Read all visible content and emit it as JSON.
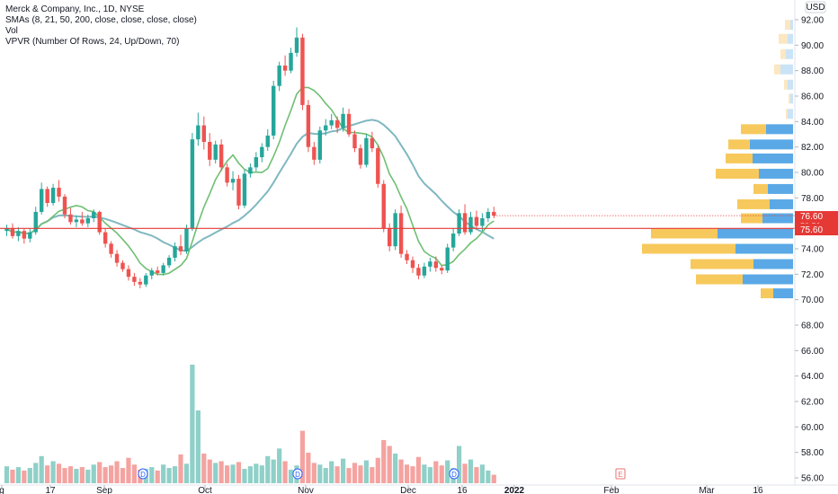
{
  "legend": {
    "line1": "Merck & Company, Inc., 1D, NYSE",
    "line2": "SMAs (8, 21, 50, 200, close, close, close, close)",
    "line3": "Vol",
    "line4": "VPVR (Number Of Rows, 24, Up/Down, 70)"
  },
  "currency": "USD",
  "price_labels": {
    "last": "76.60",
    "countdown": "58:53",
    "level": "75.60"
  },
  "event_markers": [
    "D",
    "D",
    "D",
    "D",
    "E"
  ],
  "colors": {
    "up": "#26a69a",
    "down": "#ef5350",
    "sma_fast": "#6fbf73",
    "sma_slow": "#7fb8c0",
    "level_line": "#e53935",
    "vol_up": "#8fd0c8",
    "vol_down": "#f4a3a0",
    "vp_up_value_area": "#5aa9e6",
    "vp_down_value_area": "#f7c95c",
    "vp_up_outside": "#cbe3f6",
    "vp_down_outside": "#fbe7c1"
  },
  "chart_data": {
    "type": "candlestick",
    "ticker": "Merck & Company, Inc.",
    "interval": "1D",
    "exchange": "NYSE",
    "y_axis": {
      "ticks": [
        "92.00",
        "90.00",
        "88.00",
        "86.00",
        "84.00",
        "82.00",
        "80.00",
        "78.00",
        "76.00",
        "74.00",
        "72.00",
        "70.00",
        "68.00",
        "66.00",
        "64.00",
        "62.00",
        "60.00",
        "58.00",
        "56.00"
      ],
      "range": [
        55.5,
        93
      ]
    },
    "x_axis": {
      "ticks": [
        {
          "label": "g",
          "bold": false
        },
        {
          "label": "17",
          "bold": false
        },
        {
          "label": "Sep",
          "bold": false
        },
        {
          "label": "Oct",
          "bold": false
        },
        {
          "label": "Nov",
          "bold": false
        },
        {
          "label": "Dec",
          "bold": false
        },
        {
          "label": "16",
          "bold": false
        },
        {
          "label": "2022",
          "bold": true
        },
        {
          "label": "Feb",
          "bold": false
        },
        {
          "label": "Mar",
          "bold": false
        },
        {
          "label": "16",
          "bold": false
        }
      ]
    },
    "last_price": 76.6,
    "horizontal_level": 75.6,
    "candles": [
      [
        75.4,
        75.9,
        75.0,
        75.6
      ],
      [
        75.6,
        76.0,
        74.8,
        75.0
      ],
      [
        75.0,
        75.7,
        74.6,
        75.4
      ],
      [
        75.4,
        75.6,
        74.4,
        74.8
      ],
      [
        74.8,
        75.6,
        74.5,
        75.3
      ],
      [
        75.3,
        77.3,
        75.1,
        76.9
      ],
      [
        76.9,
        79.2,
        76.7,
        78.7
      ],
      [
        78.7,
        78.9,
        77.3,
        77.6
      ],
      [
        77.6,
        79.1,
        77.4,
        78.8
      ],
      [
        78.8,
        79.4,
        77.7,
        78.1
      ],
      [
        78.1,
        78.3,
        76.4,
        76.7
      ],
      [
        76.7,
        77.2,
        75.9,
        76.1
      ],
      [
        76.1,
        76.6,
        75.7,
        76.3
      ],
      [
        76.3,
        76.9,
        75.8,
        76.0
      ],
      [
        76.0,
        76.7,
        75.7,
        76.4
      ],
      [
        76.4,
        77.1,
        76.1,
        76.9
      ],
      [
        76.9,
        77.0,
        75.1,
        75.3
      ],
      [
        75.3,
        75.6,
        74.1,
        74.4
      ],
      [
        74.4,
        74.6,
        73.3,
        73.6
      ],
      [
        73.6,
        73.9,
        72.6,
        72.9
      ],
      [
        72.9,
        73.1,
        72.2,
        72.4
      ],
      [
        72.4,
        72.7,
        71.5,
        71.8
      ],
      [
        71.8,
        72.1,
        71.1,
        71.4
      ],
      [
        71.4,
        71.7,
        70.9,
        71.2
      ],
      [
        71.2,
        72.1,
        71.0,
        71.9
      ],
      [
        71.9,
        72.5,
        71.6,
        72.3
      ],
      [
        72.3,
        72.6,
        71.9,
        72.1
      ],
      [
        72.1,
        72.9,
        71.9,
        72.7
      ],
      [
        72.7,
        73.5,
        72.5,
        73.3
      ],
      [
        73.3,
        74.5,
        73.0,
        74.2
      ],
      [
        74.2,
        75.1,
        73.5,
        73.8
      ],
      [
        73.8,
        75.9,
        73.6,
        75.6
      ],
      [
        75.6,
        83.1,
        75.4,
        82.6
      ],
      [
        82.6,
        84.7,
        82.1,
        83.7
      ],
      [
        83.7,
        84.4,
        81.8,
        82.4
      ],
      [
        82.4,
        83.1,
        80.5,
        81.0
      ],
      [
        81.0,
        82.5,
        80.7,
        82.2
      ],
      [
        82.2,
        82.6,
        80.1,
        80.4
      ],
      [
        80.4,
        80.7,
        78.9,
        79.2
      ],
      [
        79.2,
        80.1,
        78.6,
        79.5
      ],
      [
        79.5,
        79.8,
        77.1,
        77.4
      ],
      [
        77.4,
        80.2,
        77.2,
        79.9
      ],
      [
        79.9,
        80.7,
        79.6,
        80.4
      ],
      [
        80.4,
        81.6,
        80.1,
        81.2
      ],
      [
        81.2,
        82.3,
        80.8,
        82.0
      ],
      [
        82.0,
        83.4,
        81.7,
        82.9
      ],
      [
        82.9,
        87.2,
        82.6,
        86.8
      ],
      [
        86.8,
        88.7,
        86.4,
        88.4
      ],
      [
        88.4,
        89.2,
        87.6,
        88.0
      ],
      [
        88.0,
        89.8,
        87.8,
        89.4
      ],
      [
        89.4,
        91.4,
        89.1,
        90.6
      ],
      [
        90.6,
        90.9,
        84.9,
        85.3
      ],
      [
        85.3,
        85.7,
        81.6,
        82.0
      ],
      [
        82.0,
        82.4,
        80.6,
        81.0
      ],
      [
        81.0,
        83.6,
        80.7,
        83.3
      ],
      [
        83.3,
        84.2,
        82.9,
        83.7
      ],
      [
        83.7,
        84.6,
        83.4,
        84.1
      ],
      [
        84.1,
        84.4,
        83.1,
        83.5
      ],
      [
        83.5,
        85.1,
        83.2,
        84.6
      ],
      [
        84.6,
        85.0,
        82.8,
        83.0
      ],
      [
        83.0,
        83.3,
        81.6,
        81.9
      ],
      [
        81.9,
        82.2,
        80.3,
        80.6
      ],
      [
        80.6,
        83.0,
        80.4,
        82.7
      ],
      [
        82.7,
        83.2,
        81.6,
        81.9
      ],
      [
        81.9,
        82.1,
        78.8,
        79.1
      ],
      [
        79.1,
        79.4,
        75.3,
        75.6
      ],
      [
        75.6,
        76.0,
        73.8,
        74.2
      ],
      [
        74.2,
        77.1,
        73.9,
        76.8
      ],
      [
        76.8,
        77.4,
        73.3,
        73.6
      ],
      [
        73.6,
        73.9,
        72.8,
        73.1
      ],
      [
        73.1,
        73.4,
        72.1,
        72.5
      ],
      [
        72.5,
        72.8,
        71.6,
        71.9
      ],
      [
        71.9,
        72.9,
        71.7,
        72.6
      ],
      [
        72.6,
        73.3,
        72.2,
        73.0
      ],
      [
        73.0,
        73.4,
        72.2,
        72.5
      ],
      [
        72.5,
        72.7,
        72.0,
        72.3
      ],
      [
        72.3,
        74.4,
        72.1,
        74.1
      ],
      [
        74.1,
        75.6,
        73.8,
        75.2
      ],
      [
        75.2,
        77.1,
        75.0,
        76.8
      ],
      [
        76.8,
        77.5,
        75.1,
        75.3
      ],
      [
        75.3,
        76.9,
        75.1,
        76.5
      ],
      [
        76.5,
        77.0,
        75.6,
        75.8
      ],
      [
        75.8,
        76.8,
        75.4,
        76.4
      ],
      [
        76.4,
        77.2,
        76.1,
        76.9
      ],
      [
        76.9,
        77.3,
        76.4,
        76.6
      ]
    ],
    "volume": [
      2,
      1.6,
      1.9,
      1.5,
      1.8,
      2.4,
      3.2,
      2.1,
      2.6,
      2.3,
      1.8,
      2.0,
      1.7,
      1.9,
      1.6,
      2.2,
      2.5,
      1.9,
      2.1,
      2.6,
      1.8,
      3.0,
      2.2,
      1.6,
      1.7,
      1.9,
      1.5,
      2.2,
      1.8,
      2.0,
      3.4,
      2.3,
      14,
      8.6,
      3.5,
      2.8,
      2.4,
      2.6,
      2.1,
      2.2,
      2.5,
      1.7,
      2.0,
      2.3,
      2.1,
      3.2,
      2.8,
      4.1,
      2.6,
      1.6,
      2.1,
      6.2,
      3.6,
      2.4,
      2.2,
      1.8,
      2.6,
      2.0,
      2.9,
      1.8,
      2.4,
      2.1,
      2.7,
      1.9,
      3.0,
      5.1,
      4.4,
      3.5,
      2.8,
      2.2,
      2.0,
      3.1,
      2.2,
      1.9,
      2.6,
      2.1,
      2.7,
      1.8,
      4.4,
      2.3,
      2.8,
      1.9,
      2.2,
      1.5,
      1.0
    ],
    "volume_profile": [
      {
        "price": 91.6,
        "up": 3,
        "down": 6
      },
      {
        "price": 90.5,
        "up": 6,
        "down": 10
      },
      {
        "price": 89.3,
        "up": 8,
        "down": 6
      },
      {
        "price": 88.1,
        "up": 14,
        "down": 7
      },
      {
        "price": 86.9,
        "up": 6,
        "down": 4
      },
      {
        "price": 85.8,
        "up": 3,
        "down": 2
      },
      {
        "price": 84.6,
        "up": 6,
        "down": 2
      },
      {
        "price": 83.4,
        "up": 30,
        "down": 28
      },
      {
        "price": 82.2,
        "up": 48,
        "down": 24
      },
      {
        "price": 81.1,
        "up": 45,
        "down": 30
      },
      {
        "price": 79.9,
        "up": 38,
        "down": 48
      },
      {
        "price": 78.7,
        "up": 28,
        "down": 16
      },
      {
        "price": 77.5,
        "up": 26,
        "down": 36
      },
      {
        "price": 76.4,
        "up": 34,
        "down": 24
      },
      {
        "price": 75.2,
        "up": 84,
        "down": 74
      },
      {
        "price": 74.0,
        "up": 64,
        "down": 104
      },
      {
        "price": 72.8,
        "up": 44,
        "down": 70
      },
      {
        "price": 71.6,
        "up": 56,
        "down": 52
      },
      {
        "price": 70.5,
        "up": 22,
        "down": 14
      }
    ]
  }
}
